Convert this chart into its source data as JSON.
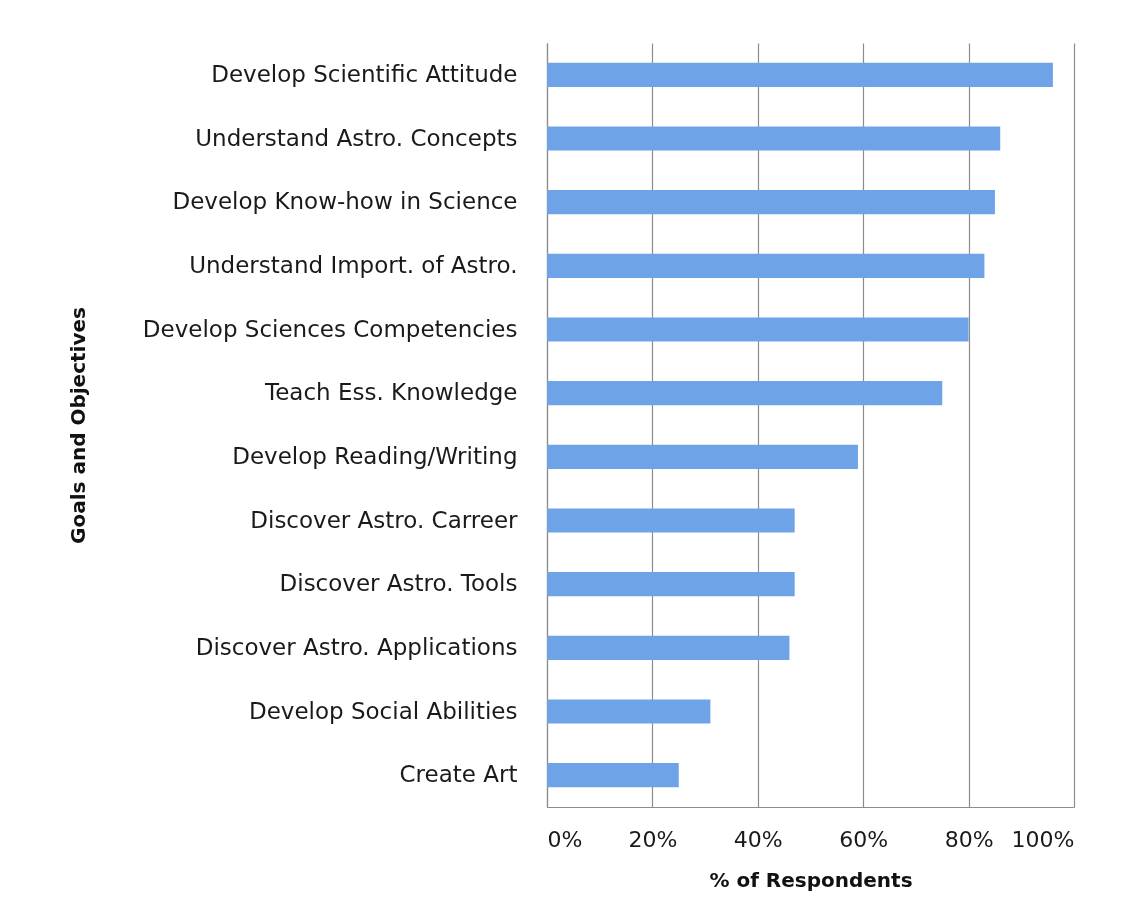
{
  "chart_data": {
    "type": "bar",
    "orientation": "horizontal",
    "xlabel": "% of Respondents",
    "ylabel": "Goals and Objectives",
    "categories": [
      "Develop Scientific Attitude",
      "Understand Astro. Concepts",
      "Develop Know-how in Science",
      "Understand Import. of Astro.",
      "Develop Sciences Competencies",
      "Teach Ess. Knowledge",
      "Develop Reading/Writing",
      "Discover Astro. Carreer",
      "Discover Astro. Tools",
      "Discover Astro. Applications",
      "Develop Social Abilities",
      "Create Art"
    ],
    "values": [
      96,
      86,
      85,
      83,
      80,
      75,
      59,
      47,
      47,
      46,
      31,
      25
    ],
    "color": "#6fa3e8",
    "xlim": [
      0,
      100
    ],
    "xticks": [
      {
        "value": 0,
        "label": "0%"
      },
      {
        "value": 20,
        "label": "20%"
      },
      {
        "value": 40,
        "label": "40%"
      },
      {
        "value": 60,
        "label": "60%"
      },
      {
        "value": 80,
        "label": "80%"
      },
      {
        "value": 100,
        "label": "100%"
      }
    ],
    "grid": "x"
  }
}
